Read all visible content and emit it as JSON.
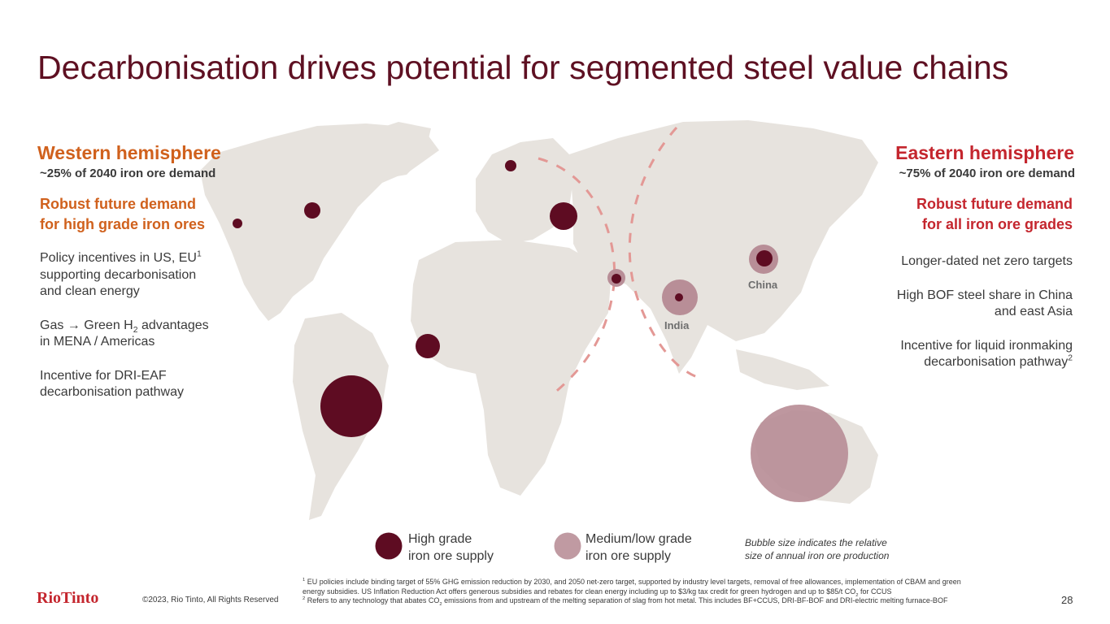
{
  "title": "Decarbonisation drives potential for segmented steel value chains",
  "west": {
    "title": "Western hemisphere",
    "demand": "~25% of 2040 iron ore demand",
    "headline_1": "Robust future demand",
    "headline_2": "for high grade iron ores",
    "p1_a": "Policy incentives in US, EU",
    "p1_sup": "1",
    "p1_b": "supporting decarbonisation",
    "p1_c": "and clean energy",
    "p2_a": "Gas",
    "p2_arrow": "→",
    "p2_b": " Green H",
    "p2_sub": "2",
    "p2_c": " advantages",
    "p2_d": "in MENA / Americas",
    "p3_a": "Incentive for DRI-EAF",
    "p3_b": "decarbonisation pathway"
  },
  "east": {
    "title": "Eastern hemisphere",
    "demand": "~75% of 2040 iron ore demand",
    "headline_1": "Robust future demand",
    "headline_2": "for all iron ore grades",
    "p1": "Longer-dated net zero targets",
    "p2_a": "High BOF steel share in China",
    "p2_b": "and east Asia",
    "p3_a": "Incentive for liquid ironmaking",
    "p3_b": "decarbonisation pathway",
    "p3_sup": "2"
  },
  "map": {
    "label_china": "China",
    "label_india": "India",
    "colors": {
      "land": "#e7e3de",
      "high_grade": "#5e0c22",
      "medium_low": "#b88e97",
      "divider": "#e39895"
    }
  },
  "legend": {
    "high_1": "High grade",
    "high_2": "iron ore supply",
    "medium_1": "Medium/low grade",
    "medium_2": "iron ore supply",
    "note_1": "Bubble size indicates the relative",
    "note_2": "size of annual iron ore production"
  },
  "footer": {
    "logo": "RioTinto",
    "copyright": "©2023, Rio Tinto, All Rights Reserved",
    "fn1_sup": "1",
    "fn1_a": " EU policies include binding target of 55% GHG emission reduction by 2030, and 2050 net-zero target, supported by industry level targets, removal of free allowances, implementation of CBAM and green",
    "fn1_b": "energy subsidies. US Inflation Reduction Act offers generous subsidies and rebates for clean energy including up to $3/kg tax credit for green hydrogen and up to $85/t CO",
    "fn1_sub": "2",
    "fn1_c": " for CCUS",
    "fn2_sup": "2",
    "fn2_a": " Refers to any technology that abates CO",
    "fn2_sub": "2",
    "fn2_b": " emissions from and upstream of the melting separation of slag from hot metal. This includes BF+CCUS, DRI-BF-BOF and DRI-electric melting furnace-BOF",
    "page": "28"
  }
}
